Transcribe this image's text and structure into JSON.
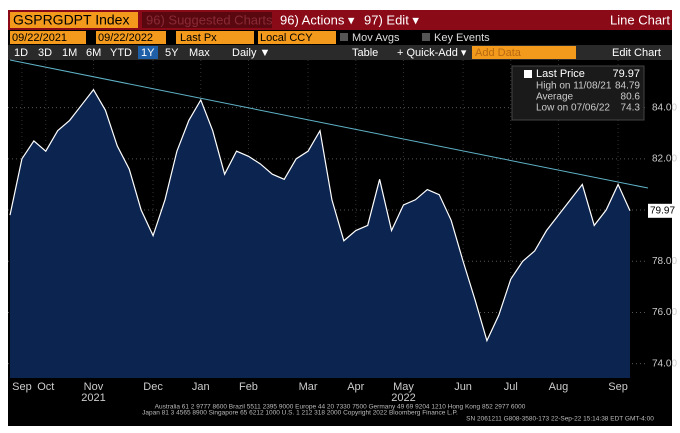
{
  "toolbar": {
    "ticker": "GSPRGDPT Index",
    "suggested": "96) Suggested Charts",
    "actions": "96) Actions ▾",
    "edit": "97) Edit ▾",
    "view": "Line Chart",
    "start": "09/22/2021",
    "end": "09/22/2022",
    "field": "Last Px",
    "currency": "Local CCY",
    "mov_avgs": "Mov Avgs",
    "key_events": "Key Events",
    "periods": [
      "1D",
      "3D",
      "1M",
      "6M",
      "YTD",
      "1Y",
      "5Y",
      "Max"
    ],
    "frequency": "Daily ▼",
    "table": "Table",
    "quick_add": "+ Quick-Add ▾",
    "add_data": "Add Data",
    "edit_chart": "Edit Chart"
  },
  "chart_data": {
    "type": "line",
    "categories": [
      null,
      "Sep",
      null,
      "Oct",
      null,
      null,
      null,
      "Nov",
      null,
      null,
      null,
      null,
      "Dec",
      null,
      null,
      null,
      "Jan",
      null,
      null,
      null,
      "Feb",
      null,
      null,
      null,
      null,
      "Mar",
      null,
      null,
      null,
      "Apr",
      null,
      null,
      null,
      "May",
      null,
      null,
      null,
      null,
      "Jun",
      null,
      null,
      null,
      "Jul",
      null,
      null,
      null,
      "Aug",
      null,
      null,
      null,
      null,
      "Sep",
      null
    ],
    "year_labels": [
      "2021",
      "2022"
    ],
    "series": [
      {
        "name": "Last Price",
        "color": "#ffffff",
        "fill": "#0c2550",
        "values": [
          79.8,
          82.0,
          82.7,
          82.3,
          83.1,
          83.5,
          84.1,
          84.7,
          83.9,
          82.5,
          81.6,
          80.0,
          79.0,
          80.4,
          82.3,
          83.5,
          84.3,
          83.1,
          81.4,
          82.3,
          82.1,
          81.8,
          81.4,
          81.2,
          82.0,
          82.3,
          83.1,
          80.4,
          78.8,
          79.2,
          79.4,
          81.2,
          79.2,
          80.2,
          80.4,
          80.8,
          80.6,
          79.6,
          78.0,
          76.5,
          74.9,
          75.9,
          77.3,
          78.0,
          78.4,
          79.2,
          79.8,
          80.4,
          81.0,
          79.4,
          80.0,
          81.0,
          79.97
        ]
      }
    ],
    "trendline": {
      "color": "#5fb3c8",
      "values": [
        85.86,
        81.0
      ]
    },
    "stats": [
      {
        "label": "High on 11/08/21",
        "value": 84.79
      },
      {
        "label": "Average",
        "value": 80.6
      },
      {
        "label": "Low on 07/06/22",
        "value": 74.3
      }
    ],
    "ylim": [
      73.44,
      85.86
    ],
    "yticks": [
      {
        "value": 74,
        "label": "74.00"
      },
      {
        "value": 76,
        "label": "76.00"
      },
      {
        "value": 78,
        "label": "78.00"
      },
      {
        "value": 80,
        "label": "80.00"
      },
      {
        "value": 82,
        "label": "82.00"
      },
      {
        "value": 84,
        "label": "84.00"
      }
    ],
    "grid": true
  },
  "footer": [
    "Australia 61 2 9777 8600 Brazil 5511 2395 9000 Europe 44 20 7330 7500 Germany 49 69 9204 1210 Hong Kong 852 2977 6000",
    "Japan 81 3 4565 8900 Singapore 65 6212 1000 U.S. 1 212 318 2000 Copyright 2022 Bloomberg Finance L.P.",
    "SN 2061211 G808-3580-173 22-Sep-22 15:14:38 EDT GMT-4:00"
  ]
}
